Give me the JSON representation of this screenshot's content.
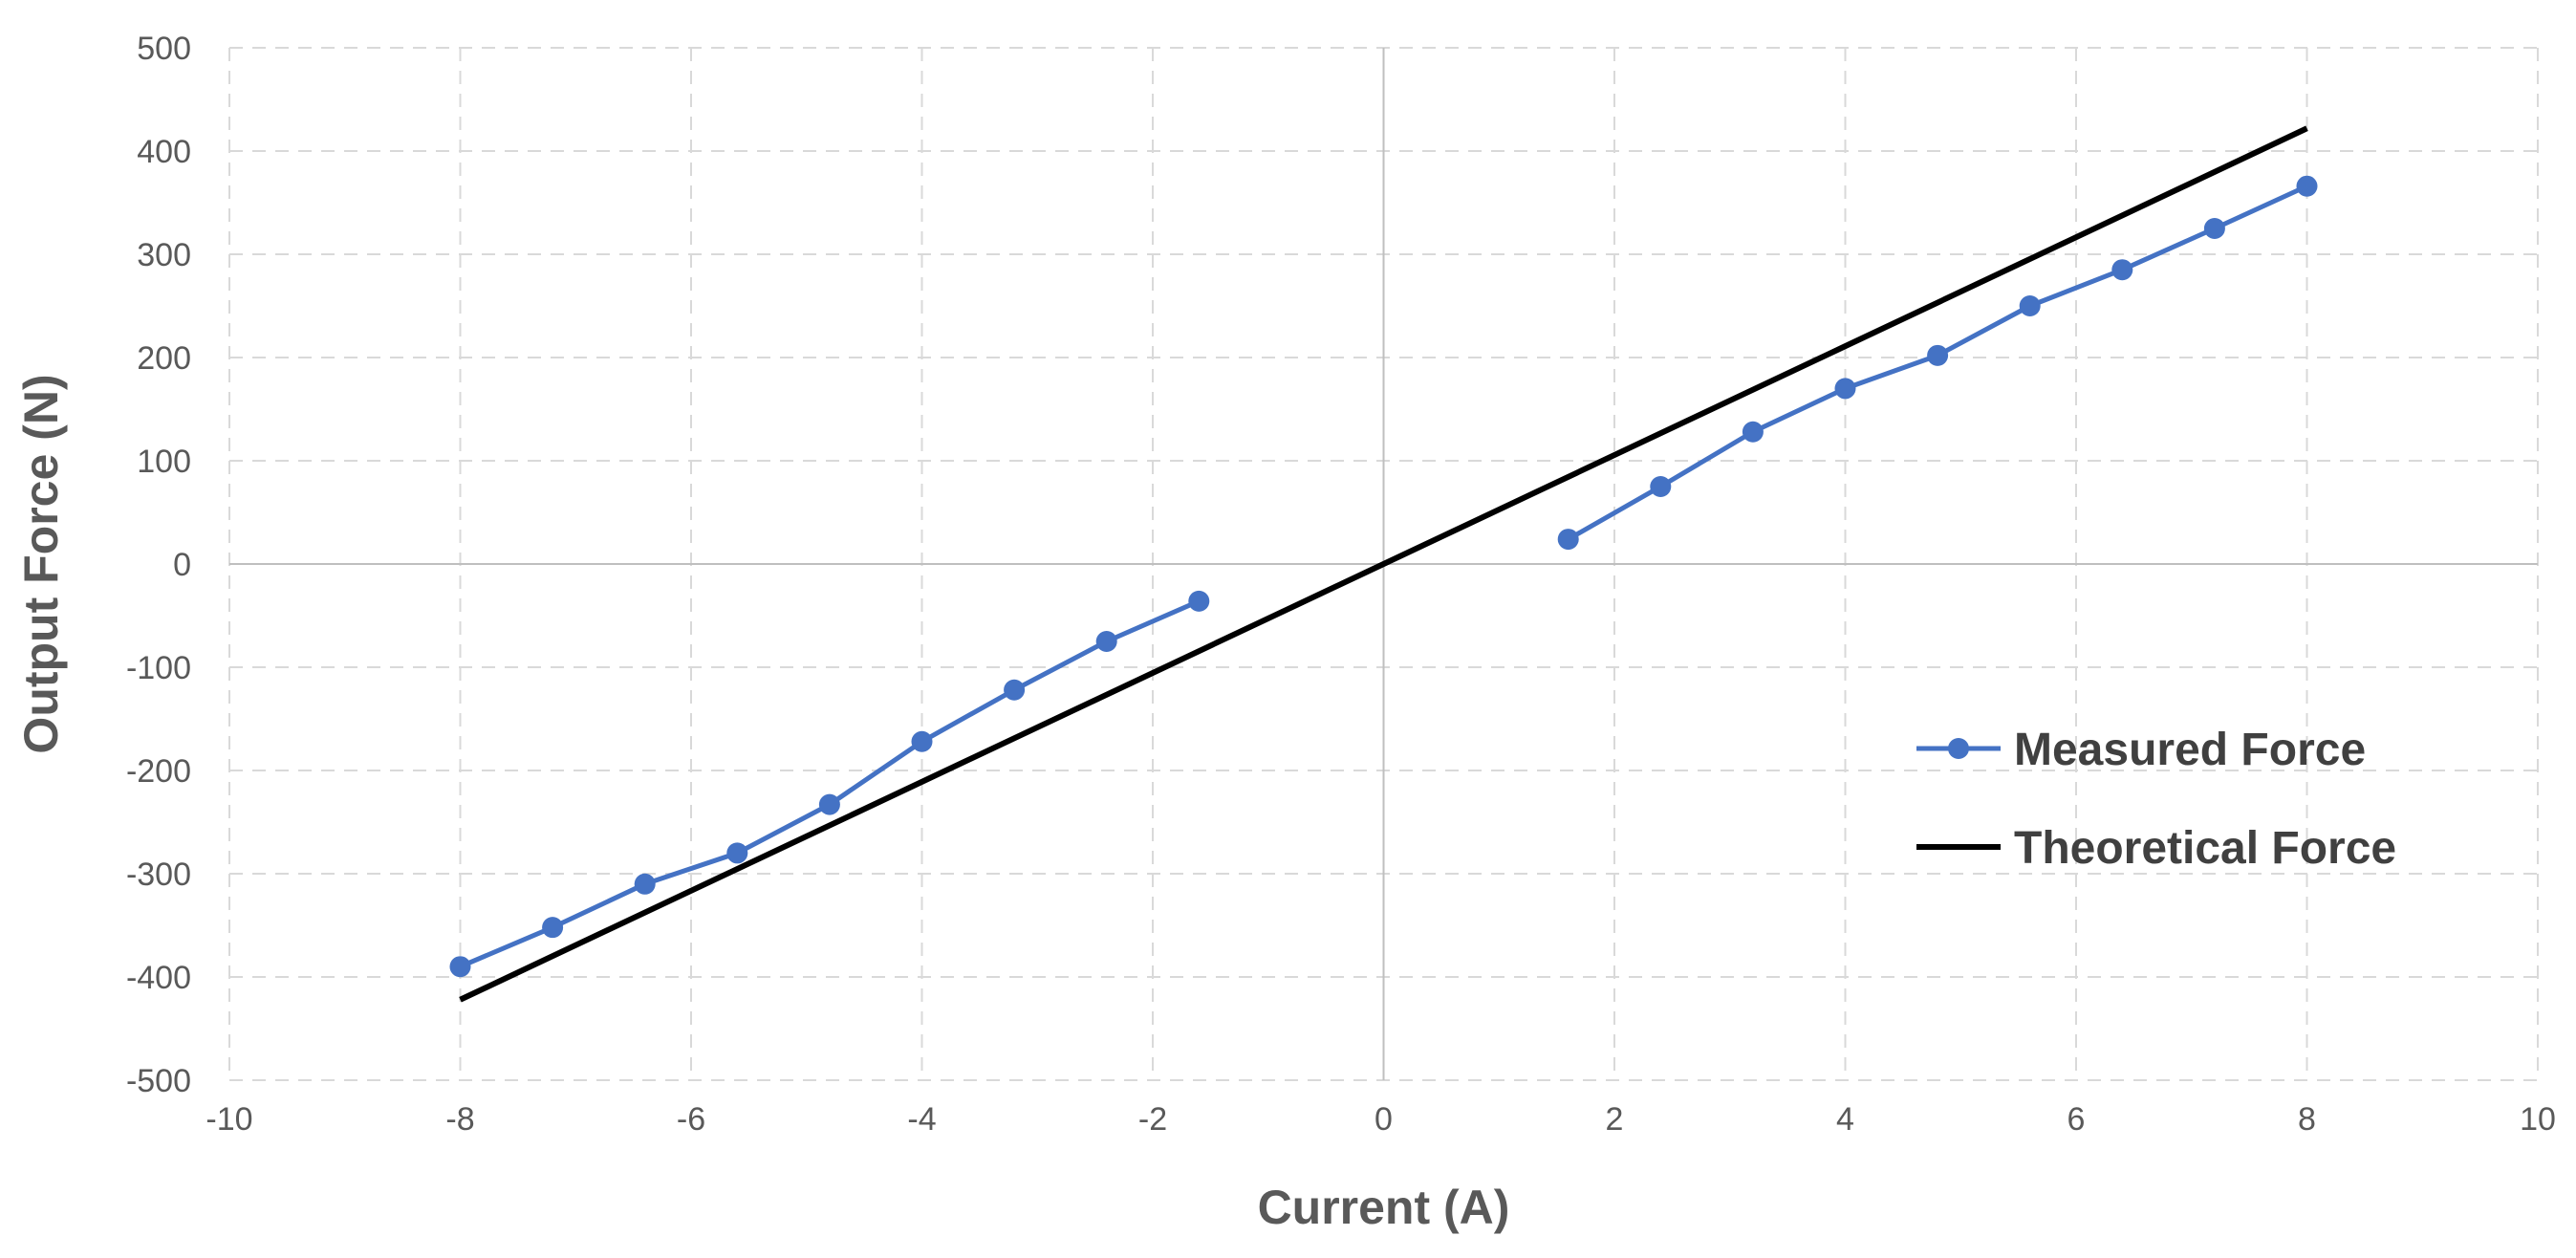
{
  "chart_data": {
    "type": "line",
    "title": "",
    "xlabel": "Current (A)",
    "ylabel": "Output Force (N)",
    "xlim": [
      -10,
      10
    ],
    "ylim": [
      -500,
      500
    ],
    "x_ticks": [
      -10,
      -8,
      -6,
      -4,
      -2,
      0,
      2,
      4,
      6,
      8,
      10
    ],
    "y_ticks": [
      -500,
      -400,
      -300,
      -200,
      -100,
      0,
      100,
      200,
      300,
      400,
      500
    ],
    "grid": true,
    "grid_style": "dashed",
    "legend_position": "right",
    "series": [
      {
        "name": "Measured Force",
        "color": "#4472C4",
        "markers": true,
        "segments": [
          {
            "x": [
              -8,
              -7.2,
              -6.4,
              -5.6,
              -4.8,
              -4,
              -3.2,
              -2.4,
              -1.6
            ],
            "y": [
              -390,
              -352,
              -310,
              -280,
              -233,
              -172,
              -122,
              -75,
              -36
            ]
          },
          {
            "x": [
              1.6,
              2.4,
              3.2,
              4,
              4.8,
              5.6,
              6.4,
              7.2,
              8
            ],
            "y": [
              24,
              75,
              128,
              170,
              202,
              250,
              285,
              325,
              366
            ]
          }
        ]
      },
      {
        "name": "Theoretical Force",
        "color": "#000000",
        "markers": false,
        "segments": [
          {
            "x": [
              -8,
              -4,
              0,
              4,
              8
            ],
            "y": [
              -422,
              -211,
              0,
              211,
              422
            ]
          }
        ]
      }
    ]
  }
}
